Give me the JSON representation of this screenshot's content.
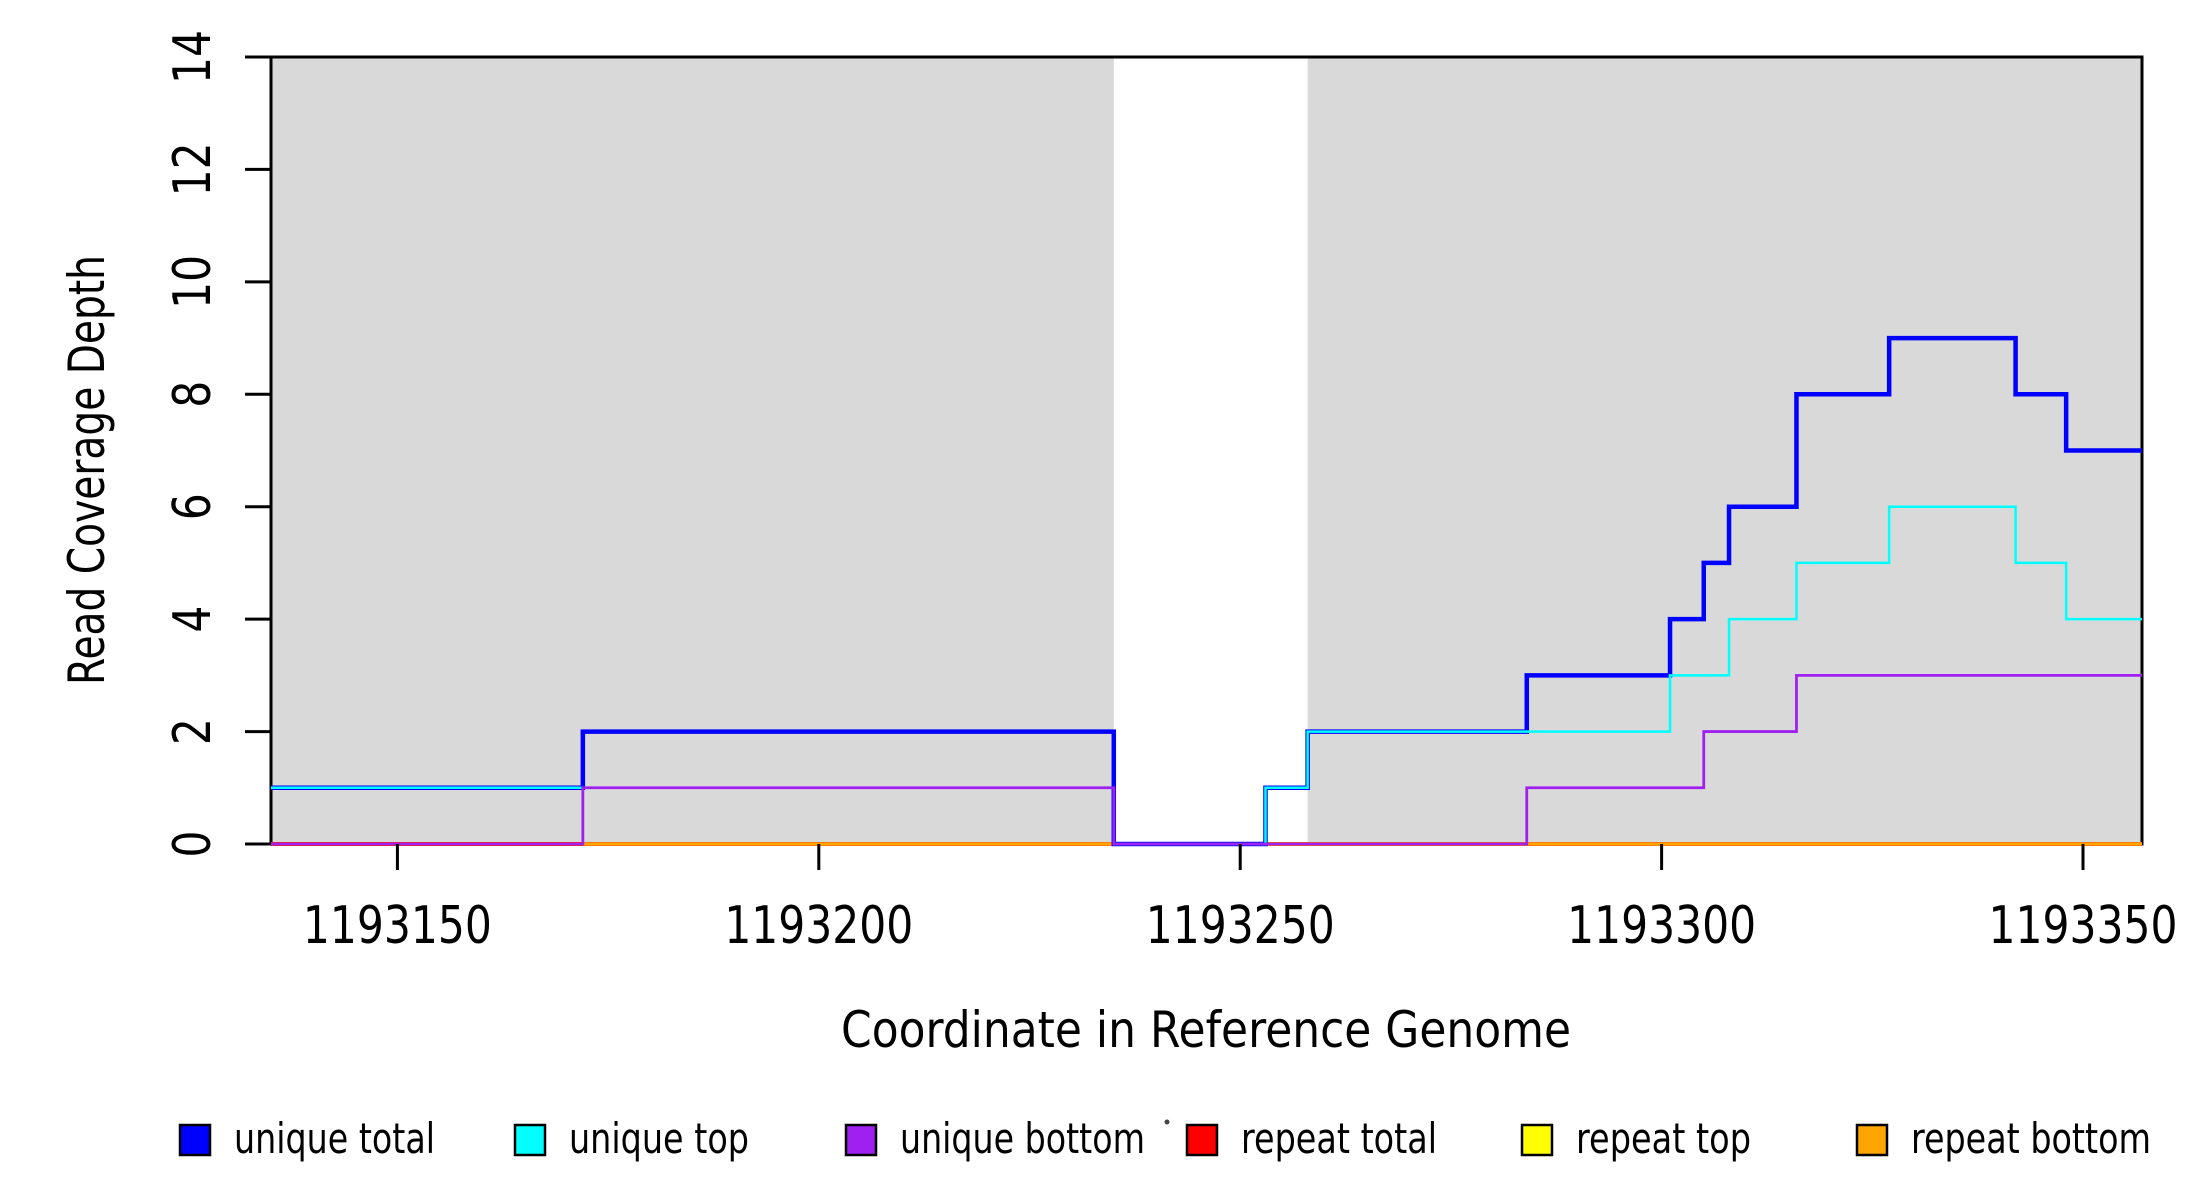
{
  "chart_data": {
    "type": "line",
    "step_mode": "after",
    "title": "",
    "xlabel": "Coordinate in Reference Genome",
    "ylabel": "Read Coverage Depth",
    "xlim": [
      1193135,
      1193357
    ],
    "ylim": [
      0,
      14
    ],
    "x_ticks": [
      1193150,
      1193200,
      1193250,
      1193300,
      1193350
    ],
    "y_ticks": [
      0,
      2,
      4,
      6,
      8,
      10,
      12,
      14
    ],
    "grid": false,
    "figure_background": "#ffffff",
    "plot_background": "#ffffff",
    "shaded_regions": [
      {
        "name": "shaded-region-left",
        "x_start": 1193135,
        "x_end": 1193235,
        "color": "#d9d9d9"
      },
      {
        "name": "shaded-region-right",
        "x_start": 1193258,
        "x_end": 1193357,
        "color": "#d9d9d9"
      }
    ],
    "series": [
      {
        "name": "repeat total",
        "color": "#ff0000",
        "line_width": 4,
        "points": [
          [
            1193135,
            0
          ],
          [
            1193357,
            0
          ]
        ]
      },
      {
        "name": "repeat top",
        "color": "#ffff00",
        "line_width": 2.5,
        "points": [
          [
            1193135,
            0
          ],
          [
            1193357,
            0
          ]
        ]
      },
      {
        "name": "repeat bottom",
        "color": "#ffa500",
        "line_width": 3.5,
        "points": [
          [
            1193172,
            0
          ],
          [
            1193357,
            0
          ]
        ]
      },
      {
        "name": "unique total",
        "color": "#0000ff",
        "line_width": 4.5,
        "points": [
          [
            1193135,
            1
          ],
          [
            1193172,
            2
          ],
          [
            1193235,
            0
          ],
          [
            1193253,
            1
          ],
          [
            1193258,
            2
          ],
          [
            1193284,
            3
          ],
          [
            1193301,
            4
          ],
          [
            1193305,
            5
          ],
          [
            1193308,
            6
          ],
          [
            1193316,
            8
          ],
          [
            1193327,
            9
          ],
          [
            1193342,
            8
          ],
          [
            1193348,
            7
          ],
          [
            1193357,
            7
          ]
        ]
      },
      {
        "name": "unique top",
        "color": "#00ffff",
        "line_width": 2.5,
        "points": [
          [
            1193135,
            1
          ],
          [
            1193235,
            0
          ],
          [
            1193253,
            1
          ],
          [
            1193258,
            2
          ],
          [
            1193301,
            3
          ],
          [
            1193308,
            4
          ],
          [
            1193316,
            5
          ],
          [
            1193327,
            6
          ],
          [
            1193342,
            5
          ],
          [
            1193348,
            4
          ],
          [
            1193357,
            4
          ]
        ]
      },
      {
        "name": "unique bottom",
        "color": "#a020f0",
        "line_width": 2.8,
        "points": [
          [
            1193135,
            0
          ],
          [
            1193172,
            1
          ],
          [
            1193235,
            0
          ],
          [
            1193284,
            1
          ],
          [
            1193305,
            2
          ],
          [
            1193316,
            3
          ],
          [
            1193357,
            3
          ]
        ]
      }
    ],
    "legend": {
      "position": "bottom",
      "entries": [
        {
          "label": "unique total",
          "color": "#0000ff"
        },
        {
          "label": "unique top",
          "color": "#00ffff"
        },
        {
          "label": "unique bottom",
          "color": "#a020f0"
        },
        {
          "label": "repeat total",
          "color": "#ff0000"
        },
        {
          "label": "repeat top",
          "color": "#ffff00"
        },
        {
          "label": "repeat bottom",
          "color": "#ffa500"
        }
      ]
    },
    "annotations": [
      {
        "name": "stray-mark",
        "description": "tiny dark speck between unique bottom label and repeat total swatch"
      }
    ]
  }
}
